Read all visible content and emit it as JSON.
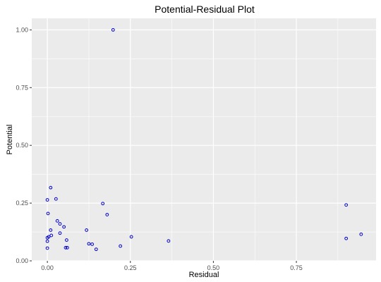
{
  "chart_data": {
    "type": "scatter",
    "title": "Potential-Residual Plot",
    "xlabel": "Residual",
    "ylabel": "Potential",
    "xlim": [
      -0.047,
      0.99
    ],
    "ylim": [
      0.0,
      1.05
    ],
    "x_ticks": [
      0.0,
      0.25,
      0.5,
      0.75
    ],
    "x_tick_labels": [
      "0.00",
      "0.25",
      "0.50",
      "0.75"
    ],
    "y_ticks": [
      0.0,
      0.25,
      0.5,
      0.75,
      1.0
    ],
    "y_tick_labels": [
      "0.00",
      "0.25",
      "0.50",
      "0.75",
      "1.00"
    ],
    "grid": true,
    "colors": {
      "panel_background": "#ebebeb",
      "grid_major": "#ffffff",
      "point_stroke": "#0000cc"
    },
    "points": [
      {
        "x": 0.198,
        "y": 1.0
      },
      {
        "x": 0.01,
        "y": 0.317
      },
      {
        "x": 0.0,
        "y": 0.264
      },
      {
        "x": 0.026,
        "y": 0.268
      },
      {
        "x": 0.167,
        "y": 0.248
      },
      {
        "x": 0.002,
        "y": 0.205
      },
      {
        "x": 0.18,
        "y": 0.2
      },
      {
        "x": 0.03,
        "y": 0.173
      },
      {
        "x": 0.038,
        "y": 0.16
      },
      {
        "x": 0.05,
        "y": 0.147
      },
      {
        "x": 0.01,
        "y": 0.133
      },
      {
        "x": 0.118,
        "y": 0.133
      },
      {
        "x": 0.038,
        "y": 0.12
      },
      {
        "x": 0.012,
        "y": 0.11
      },
      {
        "x": 0.0,
        "y": 0.1
      },
      {
        "x": 0.004,
        "y": 0.104
      },
      {
        "x": 0.253,
        "y": 0.104
      },
      {
        "x": 0.058,
        "y": 0.09
      },
      {
        "x": 0.0,
        "y": 0.085
      },
      {
        "x": 0.365,
        "y": 0.086
      },
      {
        "x": 0.125,
        "y": 0.074
      },
      {
        "x": 0.135,
        "y": 0.072
      },
      {
        "x": 0.22,
        "y": 0.064
      },
      {
        "x": 0.055,
        "y": 0.057
      },
      {
        "x": 0.06,
        "y": 0.057
      },
      {
        "x": 0.0,
        "y": 0.055
      },
      {
        "x": 0.147,
        "y": 0.05
      },
      {
        "x": 0.9,
        "y": 0.242
      },
      {
        "x": 0.9,
        "y": 0.097
      },
      {
        "x": 0.945,
        "y": 0.115
      }
    ]
  }
}
